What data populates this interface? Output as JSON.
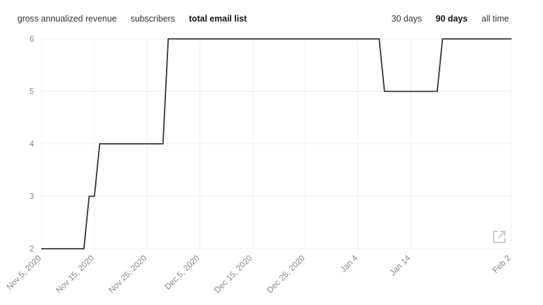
{
  "tabs": {
    "metric": [
      {
        "label": "gross annualized revenue",
        "active": false
      },
      {
        "label": "subscribers",
        "active": false
      },
      {
        "label": "total email list",
        "active": true
      }
    ],
    "range": [
      {
        "label": "30 days",
        "active": false
      },
      {
        "label": "90 days",
        "active": true
      },
      {
        "label": "all time",
        "active": false
      }
    ]
  },
  "icons": {
    "external": "external-link-icon"
  },
  "colors": {
    "line": "#333333",
    "grid": "#efefef",
    "tick_text": "#888888",
    "icon": "#c8c8c8"
  },
  "chart_data": {
    "type": "line",
    "title": "",
    "xlabel": "",
    "ylabel": "",
    "x_range": [
      "2020-11-05",
      "2021-02-02"
    ],
    "ylim": [
      2,
      6
    ],
    "y_ticks": [
      2,
      3,
      4,
      5,
      6
    ],
    "x_ticks": [
      {
        "date": "2020-11-05",
        "label": "Nov 5, 2020"
      },
      {
        "date": "2020-11-15",
        "label": "Nov 15, 2020"
      },
      {
        "date": "2020-11-25",
        "label": "Nov 25, 2020"
      },
      {
        "date": "2020-12-05",
        "label": "Dec 5, 2020"
      },
      {
        "date": "2020-12-15",
        "label": "Dec 15, 2020"
      },
      {
        "date": "2020-12-25",
        "label": "Dec 25, 2020"
      },
      {
        "date": "2021-01-04",
        "label": "Jan 4"
      },
      {
        "date": "2021-01-14",
        "label": "Jan 14"
      },
      {
        "date": "2021-02-02",
        "label": "Feb 2"
      }
    ],
    "grid": true,
    "series": [
      {
        "points": [
          {
            "x": "2020-11-05",
            "y": 2
          },
          {
            "x": "2020-11-13",
            "y": 2
          },
          {
            "x": "2020-11-14",
            "y": 3
          },
          {
            "x": "2020-11-15",
            "y": 3
          },
          {
            "x": "2020-11-16",
            "y": 4
          },
          {
            "x": "2020-11-28",
            "y": 4
          },
          {
            "x": "2020-11-29",
            "y": 6
          },
          {
            "x": "2021-01-08",
            "y": 6
          },
          {
            "x": "2021-01-09",
            "y": 5
          },
          {
            "x": "2021-01-19",
            "y": 5
          },
          {
            "x": "2021-01-20",
            "y": 6
          },
          {
            "x": "2021-02-02",
            "y": 6
          }
        ]
      }
    ]
  }
}
